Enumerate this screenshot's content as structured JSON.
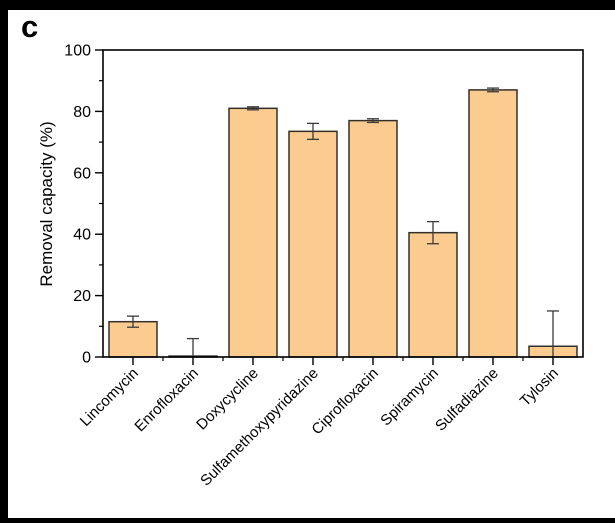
{
  "panel_label": "c",
  "chart_data": {
    "type": "bar",
    "title": "",
    "xlabel": "",
    "ylabel": "Removal capacity (%)",
    "ylim": [
      0,
      100
    ],
    "ytick_step": 20,
    "yminor_step": 10,
    "grid": false,
    "legend": false,
    "categories": [
      "Lincomycin",
      "Enrofloxacin",
      "Doxycycline",
      "Sulfamethoxypyridazine",
      "Ciprofloxacin",
      "Spiramycin",
      "Sulfadiazine",
      "Tylosin"
    ],
    "values": [
      11.5,
      0.3,
      81,
      73.5,
      77,
      40.5,
      87,
      3.5
    ],
    "errors": [
      1.8,
      5.7,
      0.5,
      2.6,
      0.6,
      3.6,
      0.6,
      11.5
    ],
    "colors": {
      "bar_fill": "#FBCB8F",
      "bar_stroke": "#33302B",
      "error": "#3A3A3A",
      "axis": "#000000",
      "background": "#FFFFFF",
      "image_border": "#000000"
    }
  }
}
